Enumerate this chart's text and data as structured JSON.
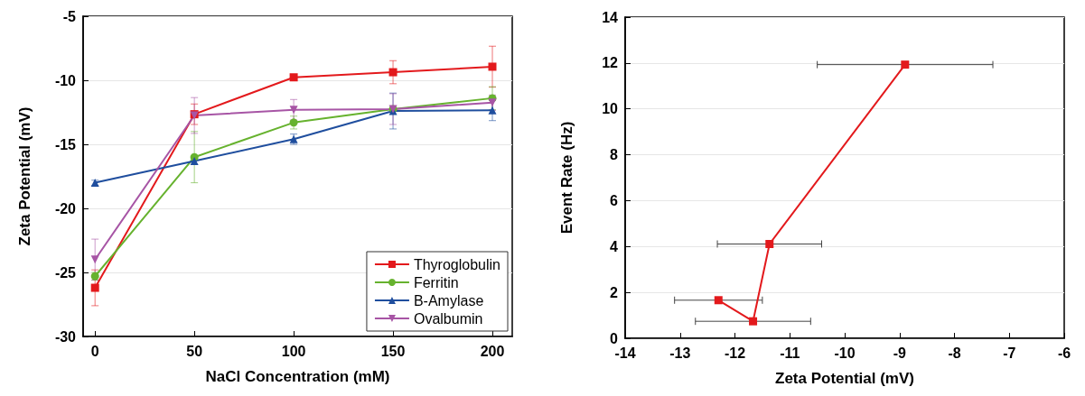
{
  "chart_data": [
    {
      "type": "line",
      "xlabel": "NaCl Concentration (mM)",
      "ylabel": "Zeta Potential (mV)",
      "x": [
        0,
        50,
        100,
        150,
        200
      ],
      "xlim": [
        -6,
        210
      ],
      "xticks": [
        0,
        50,
        100,
        150,
        200
      ],
      "ylim": [
        -30,
        -5
      ],
      "yticks": [
        -30,
        -25,
        -20,
        -15,
        -10,
        -5
      ],
      "grid": "y",
      "legend": "bottom right",
      "series": [
        {
          "name": "Thyroglobulin",
          "color": "#e3191c",
          "marker": "square",
          "values": [
            -26.2,
            -12.65,
            -9.77,
            -9.37,
            -8.94
          ],
          "errors": [
            1.4,
            0.8,
            null,
            0.9,
            1.6
          ]
        },
        {
          "name": "Ferritin",
          "color": "#66b22e",
          "marker": "circle",
          "values": [
            -25.3,
            -16.0,
            -13.3,
            -12.25,
            -11.4
          ],
          "errors": [
            0.3,
            2.0,
            0.5,
            null,
            0.9
          ]
        },
        {
          "name": "B-Amylase",
          "color": "#1f4e9e",
          "marker": "triangle",
          "values": [
            -18.0,
            -16.3,
            -14.6,
            -12.4,
            -12.35
          ],
          "errors": [
            0.2,
            null,
            0.4,
            1.4,
            0.8
          ]
        },
        {
          "name": "Ovalbumin",
          "color": "#a755a5",
          "marker": "triangle-down",
          "values": [
            -24.0,
            -12.75,
            -12.3,
            -12.25,
            -11.75
          ],
          "errors": [
            1.6,
            1.4,
            0.8,
            1.2,
            0.6
          ]
        }
      ]
    },
    {
      "type": "line",
      "xlabel": "Zeta Potential (mV)",
      "ylabel": "Event Rate (Hz)",
      "xlim": [
        -14,
        -6
      ],
      "xticks": [
        -14,
        -13,
        -12,
        -11,
        -10,
        -9,
        -8,
        -7,
        -6
      ],
      "ylim": [
        0,
        14
      ],
      "yticks": [
        0,
        2,
        4,
        6,
        8,
        10,
        12,
        14
      ],
      "grid": "y",
      "marker": "square",
      "series": [
        {
          "color": "#e3191c",
          "x": [
            -12.3,
            -11.67,
            -11.37,
            -8.9
          ],
          "values": [
            1.66,
            0.74,
            4.11,
            11.93
          ],
          "xerrors": [
            0.8,
            1.05,
            0.95,
            1.6
          ]
        }
      ]
    }
  ]
}
